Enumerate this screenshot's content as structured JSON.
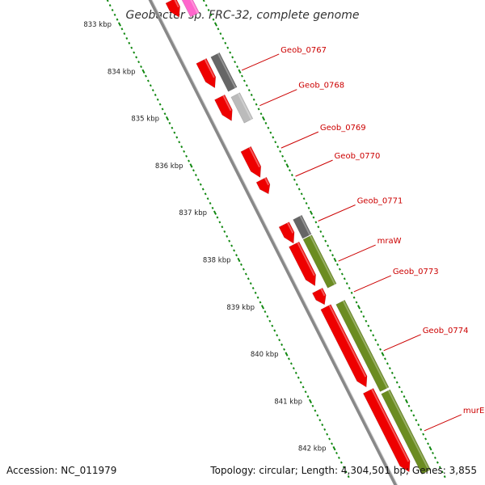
{
  "title": "Geobacter sp. FRC-32, complete genome",
  "footer": {
    "accession": "Accession: NC_011979",
    "topology": "Topology: circular; Length: 4,304,501 bp; Genes: 3,855"
  },
  "colors": {
    "forward_cds": "#ee0000",
    "dark_gray": "#666666",
    "light_gray": "#bbbbbb",
    "olive": "#6b8c21",
    "pink": "#ff66cc",
    "backbone": "#888888",
    "tick_green": "#118811",
    "label_red": "#cc0000"
  },
  "ruler": [
    {
      "label": "833 kbp",
      "kbp": 833
    },
    {
      "label": "834 kbp",
      "kbp": 834
    },
    {
      "label": "835 kbp",
      "kbp": 835
    },
    {
      "label": "836 kbp",
      "kbp": 836
    },
    {
      "label": "837 kbp",
      "kbp": 837
    },
    {
      "label": "838 kbp",
      "kbp": 838
    },
    {
      "label": "839 kbp",
      "kbp": 839
    },
    {
      "label": "840 kbp",
      "kbp": 840
    },
    {
      "label": "841 kbp",
      "kbp": 841
    },
    {
      "label": "842 kbp",
      "kbp": 842
    }
  ],
  "red_features": [
    {
      "start": 832.5,
      "end": 832.85
    },
    {
      "start": 833.78,
      "end": 834.35
    },
    {
      "start": 834.55,
      "end": 835.05
    },
    {
      "start": 835.65,
      "end": 836.25
    },
    {
      "start": 836.3,
      "end": 836.6
    },
    {
      "start": 837.25,
      "end": 837.65
    },
    {
      "start": 837.67,
      "end": 838.55
    },
    {
      "start": 838.65,
      "end": 838.95
    },
    {
      "start": 839.0,
      "end": 840.7
    },
    {
      "start": 840.78,
      "end": 842.5
    }
  ],
  "outer_features": [
    {
      "start": 832.4,
      "end": 832.8,
      "color": "pink"
    },
    {
      "start": 833.65,
      "end": 834.38,
      "color": "dark_gray"
    },
    {
      "start": 834.5,
      "end": 835.05,
      "color": "light_gray"
    },
    {
      "start": 837.1,
      "end": 837.5,
      "color": "dark_gray"
    },
    {
      "start": 837.52,
      "end": 838.55,
      "color": "olive"
    },
    {
      "start": 838.9,
      "end": 840.75,
      "color": "olive"
    },
    {
      "start": 840.8,
      "end": 842.5,
      "color": "olive"
    }
  ],
  "gene_labels": [
    {
      "name": "Geob_0767",
      "kbp": 834.0
    },
    {
      "name": "Geob_0768",
      "kbp": 834.75
    },
    {
      "name": "Geob_0769",
      "kbp": 835.65
    },
    {
      "name": "Geob_0770",
      "kbp": 836.25
    },
    {
      "name": "Geob_0771",
      "kbp": 837.2
    },
    {
      "name": "mraW",
      "kbp": 838.05
    },
    {
      "name": "Geob_0773",
      "kbp": 838.7
    },
    {
      "name": "Geob_0774",
      "kbp": 839.95
    },
    {
      "name": "murE",
      "kbp": 841.65
    }
  ]
}
